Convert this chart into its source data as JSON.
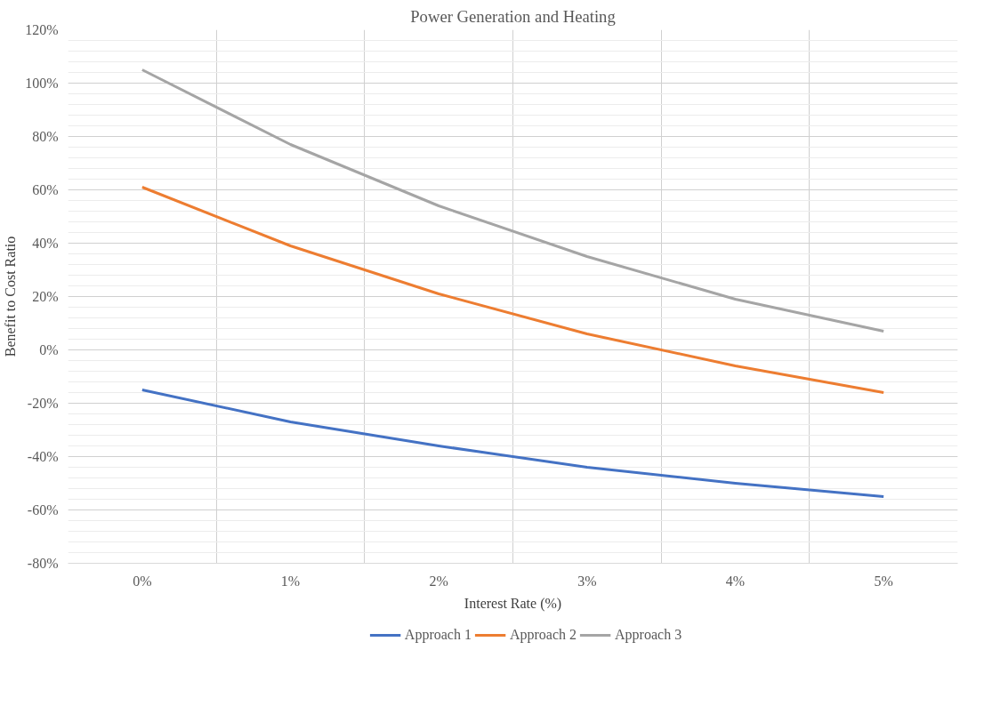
{
  "chart_data": {
    "type": "line",
    "title": "Power Generation and Heating",
    "xlabel": "Interest Rate (%)",
    "ylabel": "Benefit to Cost Ratio",
    "categories": [
      "0%",
      "1%",
      "2%",
      "3%",
      "4%",
      "5%"
    ],
    "series": [
      {
        "name": "Approach 1",
        "color": "#4472c4",
        "values": [
          -15,
          -27,
          -36,
          -44,
          -50,
          -55
        ]
      },
      {
        "name": "Approach 2",
        "color": "#ed7d31",
        "values": [
          61,
          39,
          21,
          6,
          -6,
          -16
        ]
      },
      {
        "name": "Approach 3",
        "color": "#a5a5a5",
        "values": [
          105,
          77,
          54,
          35,
          19,
          7
        ]
      }
    ],
    "ylim": [
      -80,
      120
    ],
    "yticks": [
      {
        "value": -80,
        "label": "-80%"
      },
      {
        "value": -60,
        "label": "-60%"
      },
      {
        "value": -40,
        "label": "-40%"
      },
      {
        "value": -20,
        "label": "-20%"
      },
      {
        "value": 0,
        "label": "0%"
      },
      {
        "value": 20,
        "label": "20%"
      },
      {
        "value": 40,
        "label": "40%"
      },
      {
        "value": 60,
        "label": "60%"
      },
      {
        "value": 80,
        "label": "80%"
      },
      {
        "value": 100,
        "label": "100%"
      },
      {
        "value": 120,
        "label": "120%"
      }
    ],
    "grid": true,
    "legend": "bottom",
    "marker": "none",
    "line_style": "solid"
  }
}
